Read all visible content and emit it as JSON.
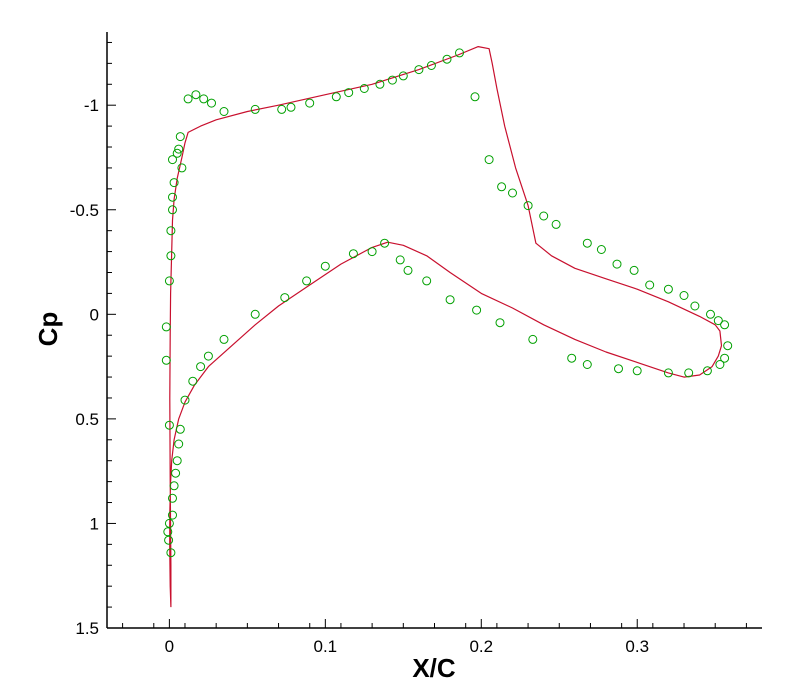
{
  "chart_data": {
    "type": "line",
    "title": "",
    "xlabel": "X/C",
    "ylabel": "Cp",
    "xlim": [
      -0.04,
      0.38
    ],
    "ylim": [
      1.5,
      -1.35
    ],
    "y_inverted": true,
    "grid": false,
    "legend": "none",
    "x_ticks": [
      {
        "value": 0,
        "label": "0"
      },
      {
        "value": 0.1,
        "label": "0.1"
      },
      {
        "value": 0.2,
        "label": "0.2"
      },
      {
        "value": 0.3,
        "label": "0.3"
      }
    ],
    "y_ticks": [
      {
        "value": -1,
        "label": "-1"
      },
      {
        "value": -0.5,
        "label": "-0.5"
      },
      {
        "value": 0,
        "label": "0"
      },
      {
        "value": 0.5,
        "label": "0.5"
      },
      {
        "value": 1,
        "label": "1"
      },
      {
        "value": 1.5,
        "label": "1.5"
      }
    ],
    "series": [
      {
        "style": "line",
        "color": "#c8102e",
        "points": [
          [
            0.001,
            1.4
          ],
          [
            0.0005,
            1.3
          ],
          [
            0.0002,
            1.1
          ],
          [
            0.0003,
            0.95
          ],
          [
            0.0008,
            0.8
          ],
          [
            0.0015,
            0.7
          ],
          [
            0.003,
            0.6
          ],
          [
            0.006,
            0.5
          ],
          [
            0.01,
            0.42
          ],
          [
            0.016,
            0.34
          ],
          [
            0.025,
            0.25
          ],
          [
            0.04,
            0.15
          ],
          [
            0.055,
            0.05
          ],
          [
            0.07,
            -0.04
          ],
          [
            0.09,
            -0.14
          ],
          [
            0.11,
            -0.24
          ],
          [
            0.13,
            -0.32
          ],
          [
            0.14,
            -0.345
          ],
          [
            0.15,
            -0.33
          ],
          [
            0.165,
            -0.28
          ],
          [
            0.18,
            -0.2
          ],
          [
            0.2,
            -0.1
          ],
          [
            0.22,
            -0.03
          ],
          [
            0.24,
            0.05
          ],
          [
            0.26,
            0.12
          ],
          [
            0.28,
            0.18
          ],
          [
            0.3,
            0.23
          ],
          [
            0.32,
            0.28
          ],
          [
            0.33,
            0.3
          ],
          [
            0.34,
            0.29
          ],
          [
            0.348,
            0.25
          ],
          [
            0.352,
            0.2
          ],
          [
            0.354,
            0.15
          ],
          [
            0.353,
            0.08
          ],
          [
            0.35,
            0.05
          ],
          [
            0.34,
            0.01
          ],
          [
            0.32,
            -0.06
          ],
          [
            0.3,
            -0.12
          ],
          [
            0.28,
            -0.17
          ],
          [
            0.26,
            -0.22
          ],
          [
            0.245,
            -0.28
          ],
          [
            0.235,
            -0.34
          ],
          [
            0.23,
            -0.52
          ],
          [
            0.222,
            -0.7
          ],
          [
            0.215,
            -0.9
          ],
          [
            0.21,
            -1.08
          ],
          [
            0.207,
            -1.2
          ],
          [
            0.205,
            -1.27
          ],
          [
            0.198,
            -1.28
          ],
          [
            0.185,
            -1.24
          ],
          [
            0.16,
            -1.17
          ],
          [
            0.13,
            -1.1
          ],
          [
            0.1,
            -1.05
          ],
          [
            0.07,
            -1.0
          ],
          [
            0.05,
            -0.97
          ],
          [
            0.03,
            -0.93
          ],
          [
            0.02,
            -0.9
          ],
          [
            0.012,
            -0.87
          ],
          [
            0.01,
            -0.82
          ],
          [
            0.008,
            -0.75
          ],
          [
            0.005,
            -0.65
          ],
          [
            0.003,
            -0.55
          ],
          [
            0.002,
            -0.45
          ],
          [
            0.0015,
            -0.3
          ],
          [
            0.0008,
            -0.1
          ],
          [
            0.0005,
            0.1
          ],
          [
            0.0003,
            0.4
          ],
          [
            0.0005,
            0.8
          ],
          [
            0.001,
            1.2
          ],
          [
            0.001,
            1.4
          ]
        ]
      },
      {
        "style": "markers",
        "marker": "circle",
        "color": "#00a000",
        "points": [
          [
            -0.001,
            1.04
          ],
          [
            -0.0005,
            1.08
          ],
          [
            0.0,
            1.0
          ],
          [
            0.001,
            1.14
          ],
          [
            0.002,
            0.96
          ],
          [
            0.002,
            0.88
          ],
          [
            0.003,
            0.82
          ],
          [
            0.004,
            0.76
          ],
          [
            0.005,
            0.7
          ],
          [
            0.006,
            0.62
          ],
          [
            0.007,
            0.55
          ],
          [
            0.0,
            0.53
          ],
          [
            -0.002,
            0.22
          ],
          [
            -0.002,
            0.06
          ],
          [
            0.0,
            -0.16
          ],
          [
            0.001,
            -0.28
          ],
          [
            0.001,
            -0.4
          ],
          [
            0.002,
            -0.5
          ],
          [
            0.002,
            -0.56
          ],
          [
            0.003,
            -0.63
          ],
          [
            0.002,
            -0.74
          ],
          [
            0.005,
            -0.77
          ],
          [
            0.006,
            -0.79
          ],
          [
            0.007,
            -0.85
          ],
          [
            0.008,
            -0.7
          ],
          [
            0.012,
            -1.03
          ],
          [
            0.017,
            -1.05
          ],
          [
            0.022,
            -1.03
          ],
          [
            0.027,
            -1.01
          ],
          [
            0.035,
            -0.97
          ],
          [
            0.055,
            -0.98
          ],
          [
            0.072,
            -0.98
          ],
          [
            0.078,
            -0.99
          ],
          [
            0.09,
            -1.01
          ],
          [
            0.107,
            -1.04
          ],
          [
            0.115,
            -1.06
          ],
          [
            0.125,
            -1.08
          ],
          [
            0.135,
            -1.1
          ],
          [
            0.143,
            -1.12
          ],
          [
            0.15,
            -1.14
          ],
          [
            0.16,
            -1.17
          ],
          [
            0.168,
            -1.19
          ],
          [
            0.178,
            -1.22
          ],
          [
            0.186,
            -1.25
          ],
          [
            0.196,
            -1.04
          ],
          [
            0.205,
            -0.74
          ],
          [
            0.213,
            -0.61
          ],
          [
            0.22,
            -0.58
          ],
          [
            0.23,
            -0.52
          ],
          [
            0.24,
            -0.47
          ],
          [
            0.248,
            -0.43
          ],
          [
            0.268,
            -0.34
          ],
          [
            0.277,
            -0.31
          ],
          [
            0.287,
            -0.24
          ],
          [
            0.298,
            -0.21
          ],
          [
            0.308,
            -0.14
          ],
          [
            0.32,
            -0.12
          ],
          [
            0.33,
            -0.09
          ],
          [
            0.337,
            -0.04
          ],
          [
            0.347,
            0.0
          ],
          [
            0.352,
            0.03
          ],
          [
            0.356,
            0.05
          ],
          [
            0.358,
            0.15
          ],
          [
            0.356,
            0.21
          ],
          [
            0.353,
            0.24
          ],
          [
            0.345,
            0.27
          ],
          [
            0.333,
            0.28
          ],
          [
            0.32,
            0.28
          ],
          [
            0.3,
            0.27
          ],
          [
            0.288,
            0.26
          ],
          [
            0.268,
            0.24
          ],
          [
            0.258,
            0.21
          ],
          [
            0.233,
            0.12
          ],
          [
            0.212,
            0.04
          ],
          [
            0.197,
            -0.02
          ],
          [
            0.18,
            -0.07
          ],
          [
            0.165,
            -0.16
          ],
          [
            0.153,
            -0.21
          ],
          [
            0.148,
            -0.26
          ],
          [
            0.138,
            -0.34
          ],
          [
            0.13,
            -0.3
          ],
          [
            0.118,
            -0.29
          ],
          [
            0.1,
            -0.23
          ],
          [
            0.088,
            -0.16
          ],
          [
            0.074,
            -0.08
          ],
          [
            0.055,
            0.0
          ],
          [
            0.035,
            0.12
          ],
          [
            0.025,
            0.2
          ],
          [
            0.02,
            0.25
          ],
          [
            0.015,
            0.32
          ],
          [
            0.01,
            0.41
          ]
        ]
      }
    ]
  }
}
